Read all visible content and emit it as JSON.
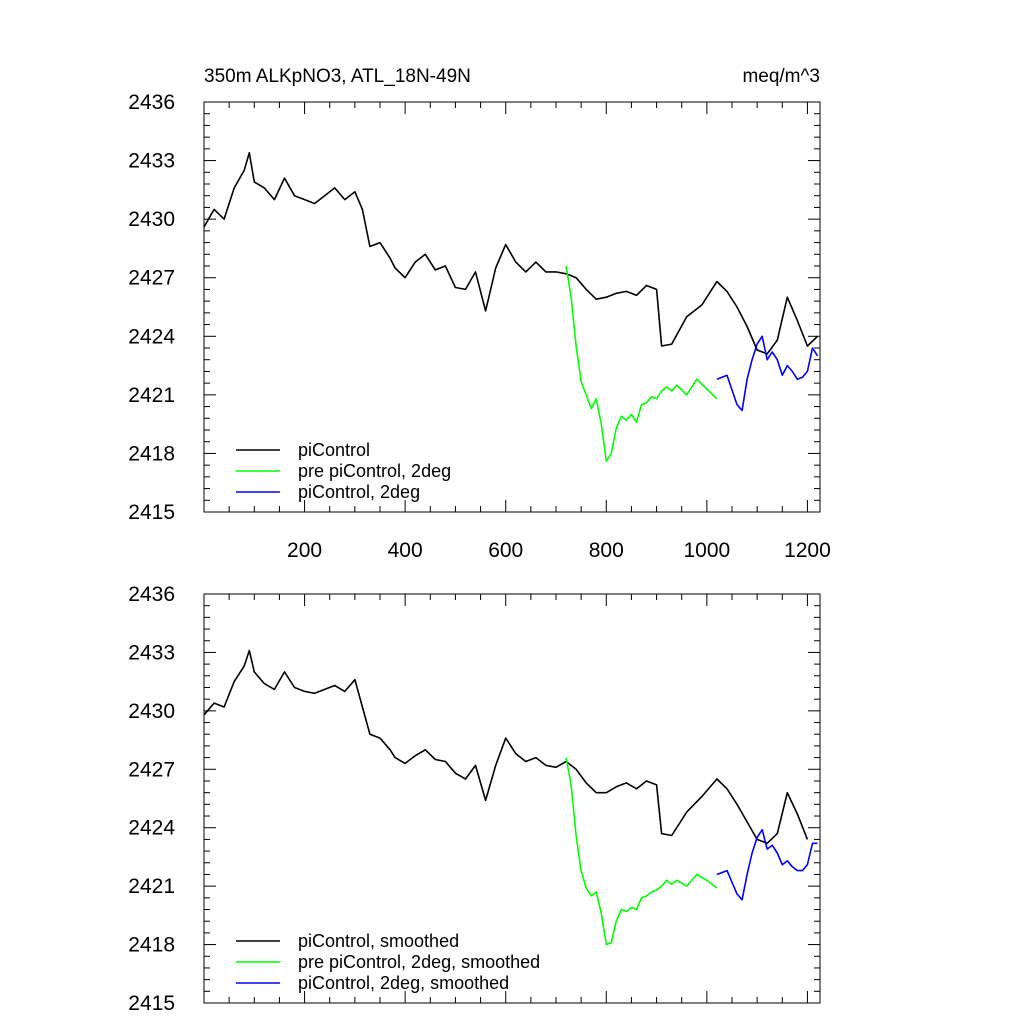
{
  "figure": {
    "title_left": "350m ALKpNO3, ATL_18N-49N",
    "title_right": "meq/m^3"
  },
  "chart_data": [
    {
      "type": "line",
      "title": "350m ALKpNO3, ATL_18N-49N",
      "units": "meq/m^3",
      "xlim": [
        0,
        1225
      ],
      "ylim": [
        2415,
        2436
      ],
      "xticks": [
        200,
        400,
        600,
        800,
        1000,
        1200
      ],
      "xtick_labels": [
        "200",
        "400",
        "600",
        "800",
        "1000",
        "1200"
      ],
      "yticks": [
        2415,
        2418,
        2421,
        2424,
        2427,
        2430,
        2433,
        2436
      ],
      "ytick_labels": [
        "2415",
        "2418",
        "2421",
        "2424",
        "2427",
        "2430",
        "2433",
        "2436"
      ],
      "show_xtick_labels": true,
      "grid": false,
      "legend_position": "bottom-left",
      "series": [
        {
          "name": "piControl",
          "color": "#000000",
          "x": [
            0,
            20,
            40,
            60,
            80,
            90,
            100,
            120,
            140,
            160,
            180,
            200,
            220,
            240,
            260,
            280,
            300,
            315,
            330,
            350,
            370,
            380,
            400,
            420,
            440,
            460,
            480,
            500,
            520,
            540,
            560,
            580,
            600,
            620,
            640,
            660,
            680,
            700,
            720,
            740,
            760,
            780,
            800,
            820,
            840,
            860,
            880,
            900,
            910,
            930,
            960,
            990,
            1020,
            1040,
            1060,
            1080,
            1100,
            1120,
            1140,
            1160,
            1180,
            1200,
            1220
          ],
          "y": [
            2429.6,
            2430.5,
            2430.0,
            2431.6,
            2432.5,
            2433.4,
            2431.9,
            2431.6,
            2431.0,
            2432.1,
            2431.2,
            2431.0,
            2430.8,
            2431.2,
            2431.6,
            2431.0,
            2431.4,
            2430.5,
            2428.6,
            2428.8,
            2428.0,
            2427.5,
            2427.0,
            2427.8,
            2428.2,
            2427.4,
            2427.6,
            2426.5,
            2426.4,
            2427.3,
            2425.3,
            2427.5,
            2428.7,
            2427.8,
            2427.3,
            2427.8,
            2427.3,
            2427.3,
            2427.2,
            2427.0,
            2426.4,
            2425.9,
            2426.0,
            2426.2,
            2426.3,
            2426.1,
            2426.6,
            2426.4,
            2423.5,
            2423.6,
            2425.0,
            2425.6,
            2426.8,
            2426.3,
            2425.5,
            2424.5,
            2423.3,
            2423.1,
            2423.8,
            2426.0,
            2424.8,
            2423.5,
            2424.0
          ]
        },
        {
          "name": "pre piControl, 2deg",
          "color": "#00ff00",
          "x": [
            720,
            730,
            740,
            750,
            760,
            770,
            780,
            790,
            800,
            810,
            820,
            830,
            840,
            850,
            860,
            870,
            880,
            890,
            900,
            910,
            920,
            930,
            940,
            960,
            980,
            1000,
            1020
          ],
          "y": [
            2427.6,
            2426.0,
            2423.5,
            2421.7,
            2421.0,
            2420.3,
            2420.8,
            2419.5,
            2417.6,
            2418.0,
            2419.3,
            2419.9,
            2419.7,
            2420.0,
            2419.6,
            2420.5,
            2420.6,
            2420.9,
            2420.8,
            2421.2,
            2421.4,
            2421.2,
            2421.5,
            2421.0,
            2421.8,
            2421.3,
            2420.8
          ]
        },
        {
          "name": "piControl, 2deg",
          "color": "#0000ff",
          "x": [
            1020,
            1040,
            1060,
            1070,
            1080,
            1090,
            1100,
            1110,
            1120,
            1130,
            1140,
            1150,
            1160,
            1170,
            1180,
            1190,
            1200,
            1210,
            1220
          ],
          "y": [
            2421.8,
            2422.0,
            2420.5,
            2420.2,
            2421.8,
            2422.8,
            2423.6,
            2424.0,
            2422.8,
            2423.2,
            2422.8,
            2422.0,
            2422.5,
            2422.2,
            2421.8,
            2421.9,
            2422.2,
            2423.4,
            2423.0
          ]
        }
      ]
    },
    {
      "type": "line",
      "xlim": [
        0,
        1225
      ],
      "ylim": [
        2415,
        2436
      ],
      "xticks": [
        200,
        400,
        600,
        800,
        1000,
        1200
      ],
      "yticks": [
        2415,
        2418,
        2421,
        2424,
        2427,
        2430,
        2433,
        2436
      ],
      "ytick_labels": [
        "2415",
        "2418",
        "2421",
        "2424",
        "2427",
        "2430",
        "2433",
        "2436"
      ],
      "show_xtick_labels": false,
      "grid": false,
      "legend_position": "bottom-left",
      "series": [
        {
          "name": "piControl, smoothed",
          "color": "#000000",
          "x": [
            0,
            20,
            40,
            60,
            80,
            90,
            100,
            120,
            140,
            160,
            180,
            200,
            220,
            240,
            260,
            280,
            300,
            315,
            330,
            350,
            370,
            380,
            400,
            420,
            440,
            460,
            480,
            500,
            520,
            540,
            560,
            580,
            600,
            620,
            640,
            660,
            680,
            700,
            720,
            740,
            760,
            780,
            800,
            820,
            840,
            860,
            880,
            900,
            910,
            930,
            960,
            990,
            1020,
            1040,
            1060,
            1080,
            1100,
            1120,
            1140,
            1160,
            1180,
            1200
          ],
          "y": [
            2429.8,
            2430.4,
            2430.2,
            2431.5,
            2432.3,
            2433.1,
            2432.0,
            2431.4,
            2431.1,
            2432.0,
            2431.2,
            2431.0,
            2430.9,
            2431.1,
            2431.3,
            2431.0,
            2431.6,
            2430.2,
            2428.8,
            2428.6,
            2428.0,
            2427.6,
            2427.3,
            2427.7,
            2428.0,
            2427.5,
            2427.4,
            2426.8,
            2426.5,
            2427.2,
            2425.4,
            2427.2,
            2428.6,
            2427.8,
            2427.4,
            2427.6,
            2427.2,
            2427.1,
            2427.4,
            2427.0,
            2426.3,
            2425.8,
            2425.8,
            2426.1,
            2426.3,
            2426.0,
            2426.4,
            2426.2,
            2423.7,
            2423.6,
            2424.8,
            2425.6,
            2426.5,
            2426.0,
            2425.2,
            2424.3,
            2423.4,
            2423.2,
            2423.7,
            2425.8,
            2424.7,
            2423.4
          ]
        },
        {
          "name": "pre piControl, 2deg, smoothed",
          "color": "#00ff00",
          "x": [
            720,
            730,
            740,
            750,
            760,
            770,
            780,
            790,
            800,
            810,
            820,
            830,
            840,
            850,
            860,
            870,
            880,
            890,
            900,
            910,
            920,
            930,
            940,
            960,
            980,
            1000,
            1020
          ],
          "y": [
            2427.6,
            2426.2,
            2423.6,
            2421.8,
            2420.9,
            2420.5,
            2420.7,
            2419.6,
            2418.0,
            2418.1,
            2419.2,
            2419.8,
            2419.7,
            2419.9,
            2419.8,
            2420.4,
            2420.5,
            2420.7,
            2420.8,
            2421.0,
            2421.3,
            2421.1,
            2421.3,
            2421.0,
            2421.6,
            2421.3,
            2420.9
          ]
        },
        {
          "name": "piControl, 2deg, smoothed",
          "color": "#0000ff",
          "x": [
            1020,
            1040,
            1060,
            1070,
            1080,
            1090,
            1100,
            1110,
            1120,
            1130,
            1140,
            1150,
            1160,
            1170,
            1180,
            1190,
            1200,
            1210,
            1220
          ],
          "y": [
            2421.6,
            2421.8,
            2420.6,
            2420.3,
            2421.6,
            2422.7,
            2423.5,
            2423.9,
            2422.9,
            2423.1,
            2422.7,
            2422.1,
            2422.3,
            2422.0,
            2421.8,
            2421.8,
            2422.1,
            2423.2,
            2423.2
          ]
        }
      ]
    }
  ]
}
